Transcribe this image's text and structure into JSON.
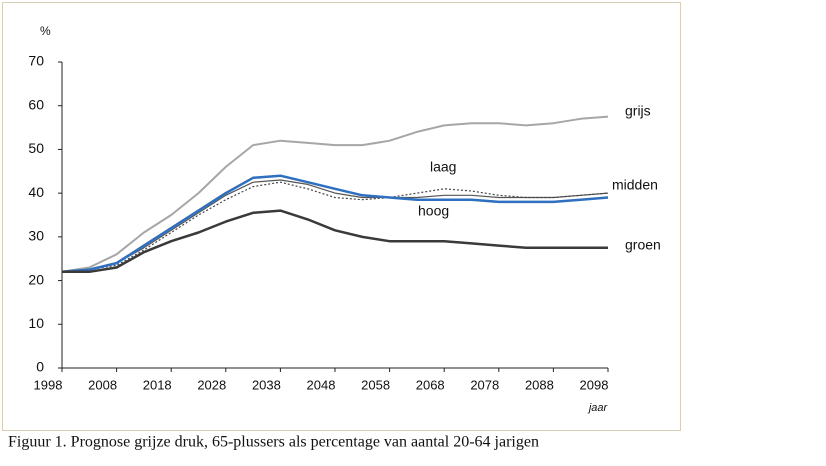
{
  "chart_data": {
    "type": "line",
    "caption": "Figuur 1. Prognose grijze druk, 65-plussers als percentage van aantal 20-64 jarigen",
    "y_label": "%",
    "x_label": "jaar",
    "x": [
      1998,
      2003,
      2008,
      2013,
      2018,
      2023,
      2028,
      2033,
      2038,
      2043,
      2048,
      2053,
      2058,
      2063,
      2068,
      2073,
      2078,
      2083,
      2088,
      2093,
      2098
    ],
    "series": [
      {
        "name": "grijs",
        "color": "#a6a6a6",
        "values": [
          22,
          23,
          26,
          31,
          35,
          40,
          46,
          51,
          52,
          51.5,
          51,
          51,
          52,
          54,
          55.5,
          56,
          56,
          55.5,
          56,
          57,
          57.5
        ]
      },
      {
        "name": "midden",
        "color": "#555555",
        "values": [
          22,
          22.5,
          24,
          27.5,
          31.5,
          35.5,
          39.5,
          42.5,
          43,
          42,
          40,
          39,
          39,
          39,
          39.5,
          39.5,
          39,
          39,
          39,
          39.5,
          40
        ]
      },
      {
        "name": "laag",
        "color": "#444444",
        "values": [
          22,
          22.5,
          23.5,
          27,
          31,
          35,
          38.5,
          41.5,
          42.5,
          41,
          39,
          38.5,
          39,
          40,
          41,
          40.5,
          39.5,
          39,
          39,
          39.5,
          40
        ]
      },
      {
        "name": "hoog",
        "color": "#2e6fc0",
        "values": [
          22,
          22.5,
          24,
          28,
          32,
          36,
          40,
          43.5,
          44,
          42.5,
          41,
          39.5,
          39,
          38.5,
          38.5,
          38.5,
          38,
          38,
          38,
          38.5,
          39
        ]
      },
      {
        "name": "groen",
        "color": "#3a3a3a",
        "values": [
          22,
          22,
          23,
          26.5,
          29,
          31,
          33.5,
          35.5,
          36,
          34,
          31.5,
          30,
          29,
          29,
          29,
          28.5,
          28,
          27.5,
          27.5,
          27.5,
          27.5
        ]
      }
    ],
    "xlim": [
      1998,
      2098
    ],
    "xticks": [
      1998,
      2008,
      2018,
      2028,
      2038,
      2048,
      2058,
      2068,
      2078,
      2088,
      2098
    ],
    "ylim": [
      0,
      70
    ],
    "yticks": [
      0,
      10,
      20,
      30,
      40,
      50,
      60,
      70
    ]
  }
}
